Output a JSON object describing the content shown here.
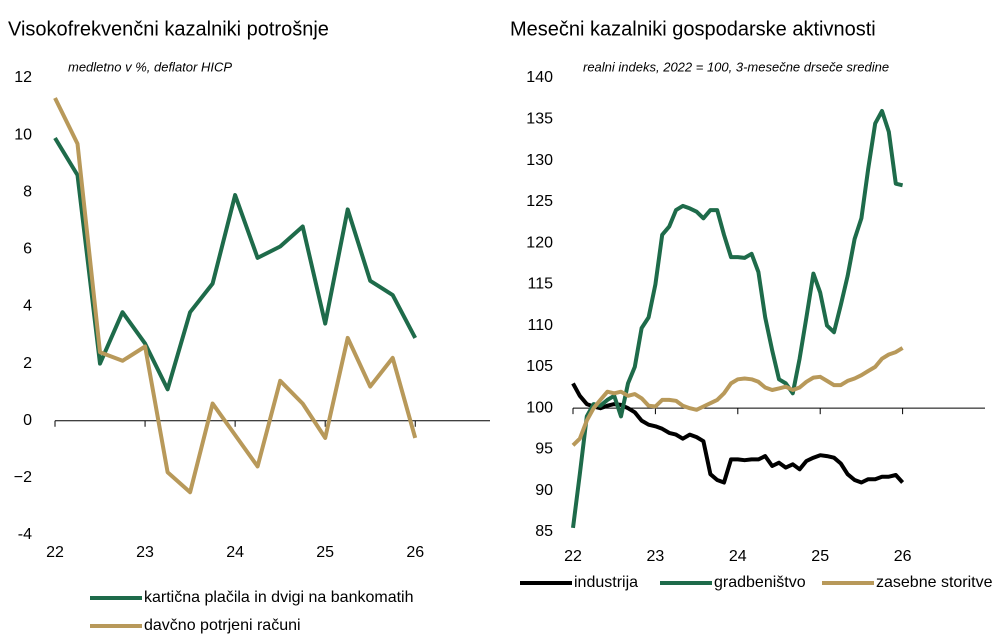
{
  "chart_data": [
    {
      "type": "line",
      "title": "Visokofrekvenčni kazalniki potrošnje",
      "subtitle": "medletno v %, deflator HICP",
      "x": [
        22,
        22.25,
        22.5,
        22.75,
        23,
        23.25,
        23.5,
        23.75,
        24,
        24.25,
        24.5,
        24.75,
        25,
        25.25,
        25.5,
        25.75,
        26
      ],
      "series": [
        {
          "name": "kartična plačila in dvigi na bankomatih",
          "color": "#1e6b4a",
          "values": [
            9.9,
            8.6,
            2.0,
            3.8,
            2.7,
            1.1,
            3.8,
            4.8,
            7.9,
            5.7,
            6.1,
            6.8,
            3.4,
            7.4,
            4.9,
            4.4,
            2.9
          ]
        },
        {
          "name": "davčno potrjeni računi",
          "color": "#b8995a",
          "values": [
            11.3,
            9.7,
            2.4,
            2.1,
            2.6,
            -1.8,
            -2.5,
            0.6,
            -0.5,
            -1.6,
            1.4,
            0.6,
            -0.6,
            2.9,
            1.2,
            2.2,
            -0.6
          ]
        }
      ],
      "xlim": [
        22,
        26.83
      ],
      "xticks": [
        22,
        23,
        24,
        25,
        26
      ],
      "ylim": [
        -4,
        12
      ],
      "yticks": [
        -4,
        {
          "value": -2,
          "label": "−2"
        },
        0,
        2,
        4,
        6,
        8,
        10,
        12
      ],
      "xaxis_crosses": 0,
      "legend": "bottom-vertical"
    },
    {
      "type": "line",
      "title": "Mesečni kazalniki gospodarske aktivnosti",
      "subtitle": "realni indeks, 2022 = 100, 3-mesečne drseče sredine",
      "x": [
        22,
        22.083,
        22.167,
        22.25,
        22.333,
        22.417,
        22.5,
        22.583,
        22.667,
        22.75,
        22.833,
        22.917,
        23,
        23.083,
        23.167,
        23.25,
        23.333,
        23.417,
        23.5,
        23.583,
        23.667,
        23.75,
        23.833,
        23.917,
        24,
        24.083,
        24.167,
        24.25,
        24.333,
        24.417,
        24.5,
        24.583,
        24.667,
        24.75,
        24.833,
        24.917,
        25,
        25.083,
        25.167,
        25.25,
        25.333,
        25.417,
        25.5,
        25.583,
        25.667,
        25.75,
        25.833,
        25.917,
        26
      ],
      "series": [
        {
          "name": "industrija",
          "color": "#000000",
          "values": [
            103,
            101.5,
            100.5,
            100.2,
            100,
            100.3,
            100.5,
            100.4,
            100,
            99.5,
            98.5,
            98,
            97.8,
            97.5,
            97,
            96.8,
            96.3,
            96.8,
            96.5,
            96,
            92,
            91.3,
            91,
            93.8,
            93.8,
            93.7,
            93.8,
            93.8,
            94.2,
            93,
            93.4,
            92.8,
            93.2,
            92.6,
            93.6,
            94,
            94.3,
            94.2,
            94,
            93.3,
            92,
            91.3,
            91,
            91.4,
            91.4,
            91.7,
            91.7,
            91.9,
            91
          ]
        },
        {
          "name": "gradbeništvo",
          "color": "#1e6b4a",
          "values": [
            85.5,
            92,
            99,
            100.5,
            100.3,
            101,
            101.5,
            99,
            103,
            105,
            109.7,
            111,
            115,
            121,
            122,
            124,
            124.5,
            124.2,
            123.8,
            123,
            124,
            124,
            121,
            118.3,
            118.3,
            118.2,
            118.7,
            116.5,
            111,
            107,
            103.5,
            103,
            101.8,
            106,
            111,
            116.3,
            114,
            110,
            109.2,
            112.5,
            116,
            120.5,
            123,
            129,
            134.5,
            136,
            133.5,
            127.2,
            127
          ]
        },
        {
          "name": "zasebne storitve",
          "color": "#b8995a",
          "values": [
            95.5,
            96.3,
            98.5,
            100,
            101,
            102,
            101.8,
            102,
            101.5,
            101.7,
            101.2,
            100.3,
            100.2,
            101,
            101,
            100.9,
            100.3,
            100,
            99.8,
            100.2,
            100.6,
            101,
            101.8,
            103,
            103.5,
            103.6,
            103.5,
            103.2,
            102.5,
            102.2,
            102.4,
            102.6,
            102.2,
            102.5,
            103.2,
            103.7,
            103.8,
            103.3,
            102.8,
            102.8,
            103.3,
            103.6,
            104,
            104.5,
            105,
            106,
            106.5,
            106.8,
            107.3
          ]
        }
      ],
      "xlim": [
        22,
        27
      ],
      "xticks": [
        22,
        23,
        24,
        25,
        26
      ],
      "ylim": [
        85,
        140
      ],
      "yticks": [
        85,
        90,
        95,
        100,
        105,
        110,
        115,
        120,
        125,
        130,
        135,
        140
      ],
      "xaxis_crosses": 100,
      "legend": "bottom-horizontal"
    }
  ]
}
